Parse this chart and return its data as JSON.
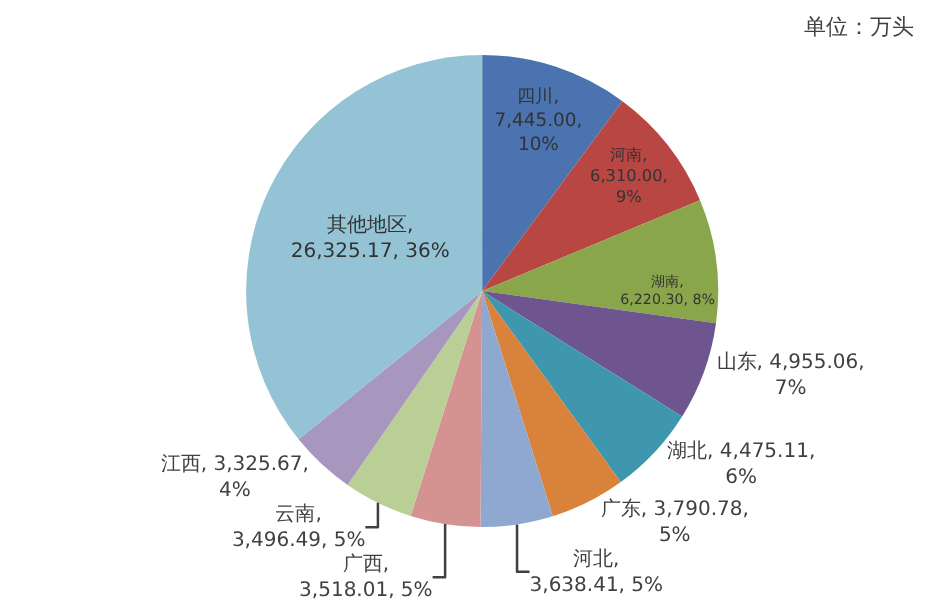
{
  "chart_data": {
    "type": "pie",
    "annotations": [
      "单位：万头"
    ],
    "categories": [
      "四川",
      "河南",
      "湖南",
      "山东",
      "湖北",
      "广东",
      "河北",
      "广西",
      "云南",
      "江西",
      "其他地区"
    ],
    "values": [
      7445.0,
      6310.0,
      6220.3,
      4955.06,
      4475.11,
      3790.78,
      3638.41,
      3518.01,
      3496.49,
      3325.67,
      26325.17
    ],
    "colors": [
      "#4a73b0",
      "#b84743",
      "#8aa64a",
      "#6e558f",
      "#3e97ae",
      "#d8823b",
      "#8fa8d0",
      "#d49391",
      "#b9cf96",
      "#a797bf",
      "#93c3d5"
    ],
    "value_labels": [
      ",\n7,445.00,\n10%",
      ",\n6,310.00,\n9%",
      ",\n6,220.30, 8%",
      ", 4,955.06,\n7%",
      ", 4,475.11,\n6%",
      ", 3,790.78,\n5%",
      ",\n3,638.41, 5%",
      ",\n3,518.01, 5%",
      ",\n3,496.49, 5%",
      ", 3,325.67,\n4%",
      ",\n26,325.17, 36%"
    ],
    "legend": false
  }
}
